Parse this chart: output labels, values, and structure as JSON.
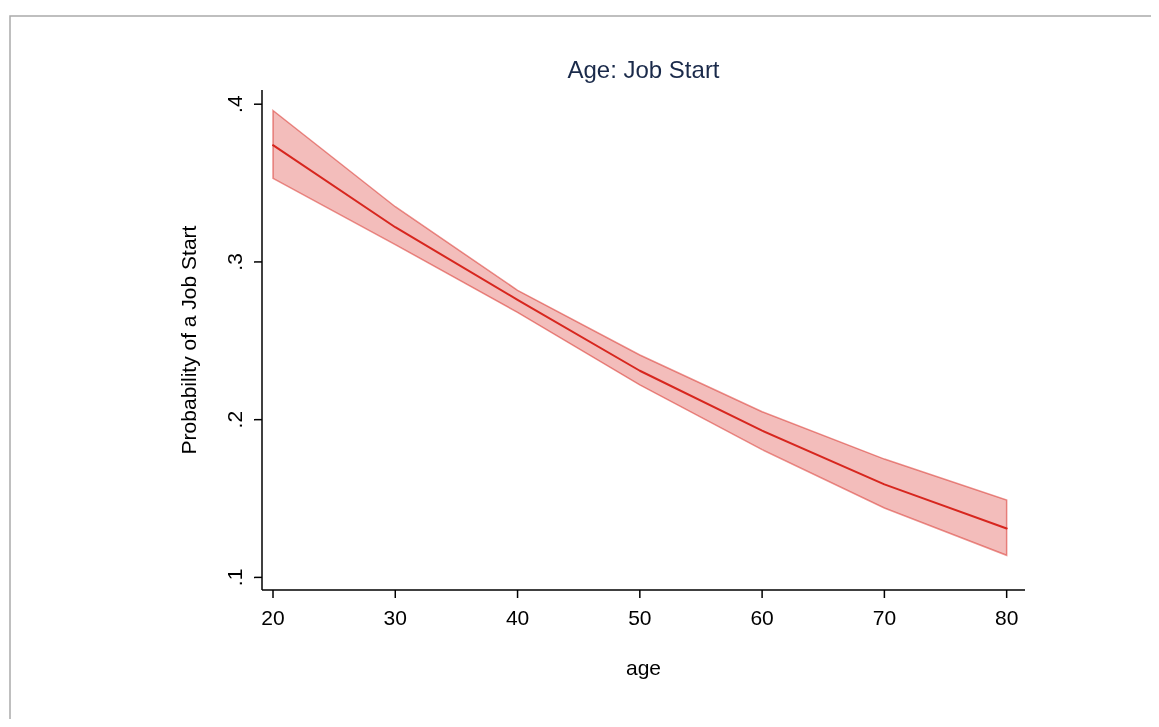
{
  "chart_data": {
    "type": "line",
    "title": "Age: Job Start",
    "xlabel": "age",
    "ylabel": "Probability of a Job Start",
    "x": [
      20,
      30,
      40,
      50,
      60,
      70,
      80
    ],
    "series": [
      {
        "color": "#d7261e",
        "values": [
          0.374,
          0.322,
          0.276,
          0.231,
          0.193,
          0.159,
          0.131
        ],
        "lower": [
          0.353,
          0.311,
          0.268,
          0.222,
          0.181,
          0.144,
          0.114
        ],
        "upper": [
          0.396,
          0.335,
          0.282,
          0.241,
          0.205,
          0.175,
          0.149
        ]
      }
    ],
    "xlim": [
      19.1,
      81.5
    ],
    "ylim": [
      0.092,
      0.409
    ],
    "xticks": [
      20,
      30,
      40,
      50,
      60,
      70,
      80
    ],
    "yticks": [
      {
        "value": 0.1,
        "label": ".1"
      },
      {
        "value": 0.2,
        "label": ".2"
      },
      {
        "value": 0.3,
        "label": ".3"
      },
      {
        "value": 0.4,
        "label": ".4"
      }
    ],
    "marker": "none",
    "line_style": "solid"
  }
}
